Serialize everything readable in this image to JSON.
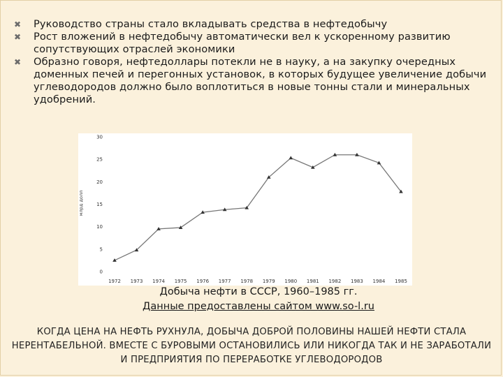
{
  "bullets": [
    "Руководство страны стало вкладывать средства в нефтедобычу",
    "Рост вложений в нефтедобычу автоматически вел к ускоренному развитию сопутствующих отраслей экономики",
    "Образно говоря, нефтедоллары потекли не в науку, а на закупку очередных доменных печей и перегонных установок, в которых будущее увеличение добычи углеводородов должно было воплотиться в новые тонны стали и минеральных удобрений."
  ],
  "bullet_icon": "x-mark-icon",
  "chart_data": {
    "type": "line",
    "ylabel": "млрд долл",
    "ylim": [
      0,
      30
    ],
    "yticks": [
      "0",
      "5",
      "10",
      "15",
      "20",
      "25",
      "30"
    ],
    "categories": [
      "1972",
      "1973",
      "1974",
      "1975",
      "1976",
      "1977",
      "1978",
      "1979",
      "1980",
      "1981",
      "1982",
      "1983",
      "1984",
      "1985"
    ],
    "values": [
      2.5,
      4.8,
      9.5,
      9.8,
      13.2,
      13.8,
      14.2,
      21.0,
      25.3,
      23.2,
      26.0,
      26.0,
      24.2,
      17.8
    ],
    "line_color": "#777777"
  },
  "caption": {
    "title": "Добыча нефти в СССР, 1960–1985 гг.",
    "source": "Данные предоставлены сайтом www.so-l.ru"
  },
  "bottom_text": "КОГДА ЦЕНА НА НЕФТЬ РУХНУЛА, ДОБЫЧА ДОБРОЙ ПОЛОВИНЫ НАШЕЙ НЕФТИ СТАЛА НЕРЕНТАБЕЛЬНОЙ. ВМЕСТЕ С БУРОВЫМИ ОСТАНОВИЛИСЬ ИЛИ НИКОГДА ТАК И НЕ ЗАРАБОТАЛИ И ПРЕДПРИЯТИЯ ПО ПЕРЕРАБОТКЕ УГЛЕВОДОРОДОВ"
}
